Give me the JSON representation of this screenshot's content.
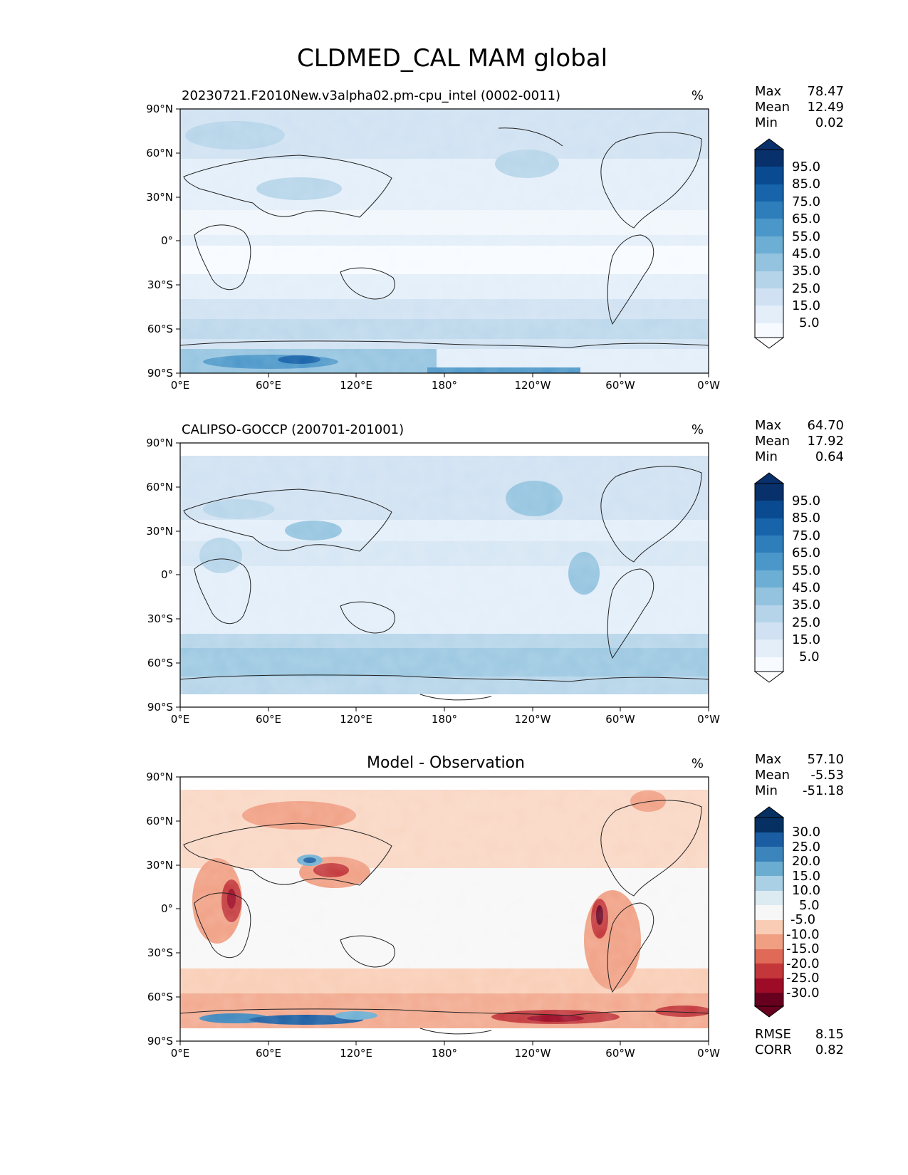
{
  "title": "CLDMED_CAL MAM global",
  "lat_ticks": [
    "90°N",
    "60°N",
    "30°N",
    "0°",
    "30°S",
    "60°S",
    "90°S"
  ],
  "lon_ticks": [
    "0°E",
    "60°E",
    "120°E",
    "180°",
    "120°W",
    "60°W",
    "0°W"
  ],
  "units": "%",
  "stat_labels": {
    "max": "Max",
    "mean": "Mean",
    "min": "Min",
    "rmse": "RMSE",
    "corr": "CORR"
  },
  "panels": [
    {
      "name": "model",
      "title": "20230721.F2010New.v3alpha02.pm-cpu_intel (0002-0011)",
      "stats": {
        "max": "78.47",
        "mean": "12.49",
        "min": "0.02"
      },
      "colorbar": {
        "labels": [
          "95.0",
          "85.0",
          "75.0",
          "65.0",
          "55.0",
          "45.0",
          "35.0",
          "25.0",
          "15.0",
          "5.0"
        ]
      }
    },
    {
      "name": "obs",
      "title": "CALIPSO-GOCCP (200701-201001)",
      "stats": {
        "max": "64.70",
        "mean": "17.92",
        "min": "0.64"
      },
      "colorbar": {
        "labels": [
          "95.0",
          "85.0",
          "75.0",
          "65.0",
          "55.0",
          "45.0",
          "35.0",
          "25.0",
          "15.0",
          "5.0"
        ]
      }
    },
    {
      "name": "diff",
      "title": "Model - Observation",
      "stats": {
        "max": "57.10",
        "mean": "-5.53",
        "min": "-51.18"
      },
      "extra": {
        "rmse": "8.15",
        "corr": "0.82"
      },
      "colorbar": {
        "labels": [
          "30.0",
          "25.0",
          "20.0",
          "15.0",
          "10.0",
          "5.0",
          "-5.0",
          "-10.0",
          "-15.0",
          "-20.0",
          "-25.0",
          "-30.0"
        ]
      }
    }
  ],
  "colors": {
    "blues": [
      "#f7fbff",
      "#e3eef9",
      "#cfe1f2",
      "#b5d4e9",
      "#93c3df",
      "#6daed5",
      "#4b97c9",
      "#2f7ebc",
      "#1864aa",
      "#0a4a90",
      "#08306b"
    ],
    "rdbu": [
      "#67001f",
      "#9e0b26",
      "#c3373a",
      "#de6a57",
      "#f09f83",
      "#f9cdb5",
      "#f7f7f7",
      "#dceaf2",
      "#aad0e5",
      "#6badd1",
      "#3b85bc",
      "#1a5da2",
      "#053061"
    ]
  }
}
